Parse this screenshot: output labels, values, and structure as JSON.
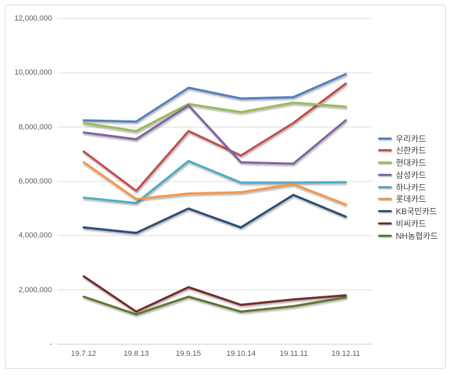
{
  "chart_data": {
    "type": "line",
    "title": "",
    "xlabel": "",
    "ylabel": "",
    "x": [
      "19.7.12",
      "19.8.13",
      "19.9.15",
      "19.10.14",
      "19.11.11",
      "19.12.11"
    ],
    "yticks": [
      "12,000,000",
      "10,000,000",
      "8,000,000",
      "6,000,000",
      "4,000,000",
      "2,000,000",
      "-"
    ],
    "ytick_values": [
      12000000,
      10000000,
      8000000,
      6000000,
      4000000,
      2000000,
      0
    ],
    "ylim": [
      0,
      12000000
    ],
    "grid": true,
    "legend_position": "right",
    "series": [
      {
        "name": "우리카드",
        "color": "#4F81BD",
        "values": [
          8250000,
          8200000,
          9450000,
          9050000,
          9100000,
          9950000
        ]
      },
      {
        "name": "신한카드",
        "color": "#C0504D",
        "values": [
          7100000,
          5650000,
          7850000,
          6950000,
          8150000,
          9600000
        ]
      },
      {
        "name": "현대카드",
        "color": "#9BBB59",
        "values": [
          8150000,
          7850000,
          8850000,
          8550000,
          8900000,
          8750000
        ]
      },
      {
        "name": "삼성카드",
        "color": "#8064A2",
        "values": [
          7800000,
          7550000,
          8800000,
          6700000,
          6650000,
          8250000
        ]
      },
      {
        "name": "하나카드",
        "color": "#4BACC6",
        "values": [
          5400000,
          5200000,
          6750000,
          5950000,
          5950000,
          5970000
        ]
      },
      {
        "name": "롯데카드",
        "color": "#F79646",
        "values": [
          6700000,
          5350000,
          5550000,
          5600000,
          5900000,
          5150000
        ]
      },
      {
        "name": "KB국민카드",
        "color": "#2C4D75",
        "values": [
          4300000,
          4100000,
          5000000,
          4300000,
          5500000,
          4700000
        ]
      },
      {
        "name": "비씨카드",
        "color": "#772C2A",
        "values": [
          2500000,
          1200000,
          2100000,
          1450000,
          1650000,
          1800000
        ]
      },
      {
        "name": "NH농협카드",
        "color": "#5F7530",
        "values": [
          1750000,
          1100000,
          1750000,
          1200000,
          1400000,
          1730000
        ]
      }
    ]
  },
  "colors": {
    "background": "#ffffff",
    "frame_border": "#d9d9d9",
    "gridline": "#dcdcdc",
    "axis_line": "#c6c6c6",
    "tick_text": "#595959",
    "legend_text": "#3f3f3f"
  }
}
